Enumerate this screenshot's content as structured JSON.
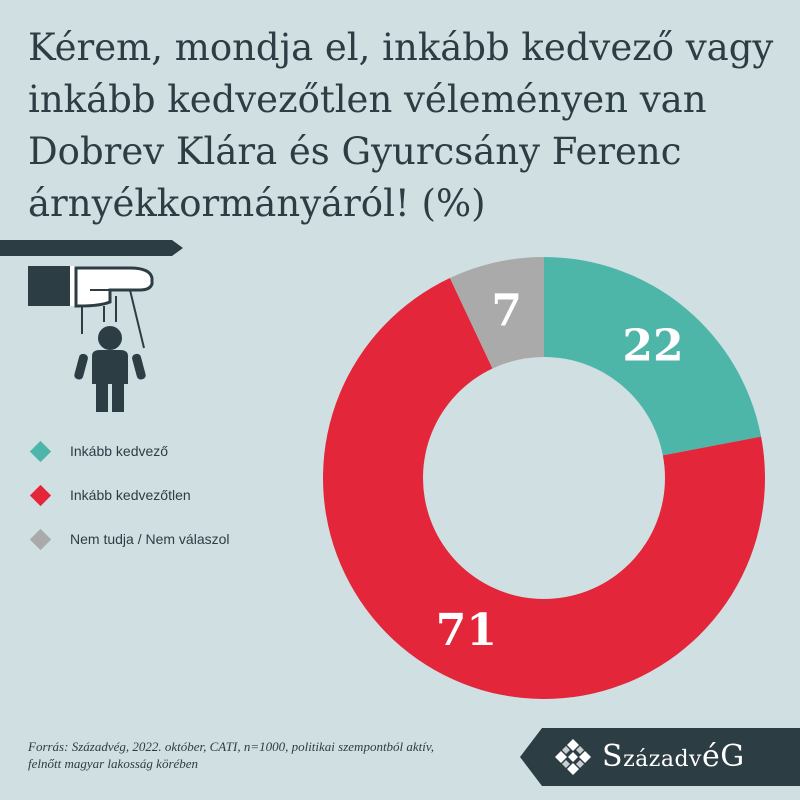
{
  "colors": {
    "background": "#cfdfe2",
    "dark": "#2d3d44",
    "favorable": "#4eb5a9",
    "unfavorable": "#e3263a",
    "dont_know": "#a9aaa9"
  },
  "chart_data": {
    "type": "pie",
    "variant": "donut",
    "title": "Kérem, mondja el, inkább kedvező vagy inkább kedvezőtlen véleményen van Dobrev Klára és Gyurcsány Ferenc árnyékkormányáról! (%)",
    "legend_position": "left",
    "slices": [
      {
        "label": "Inkább kedvező",
        "value": 22,
        "color": "#4eb5a9"
      },
      {
        "label": "Inkább kedvezőtlen",
        "value": 71,
        "color": "#e3263a"
      },
      {
        "label": "Nem tudja / Nem válaszol",
        "value": 7,
        "color": "#a9aaa9"
      }
    ]
  },
  "source": {
    "line1": "Forrás: Századvég, 2022. október, CATI, n=1000, politikai szempontból aktív,",
    "line2": "felnőtt magyar lakosság körében"
  },
  "brand": {
    "first": "S",
    "mid1": "zázadv",
    "mid2": "é",
    "last": "G",
    "icon": "diamond-logo-icon"
  },
  "illustration": {
    "icon": "puppet-hand-icon"
  }
}
